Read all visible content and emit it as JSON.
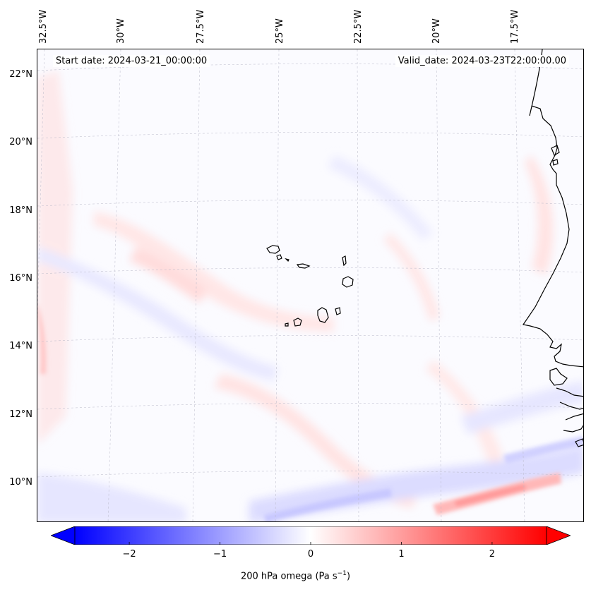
{
  "map": {
    "projection": "Lambert-like conic",
    "field": "200 hPa omega",
    "start_date": "Start date: 2024-03-21_00:00:00",
    "valid_date": "Valid_date: 2024-03-23T22:00:00.00",
    "longitude_labels": [
      "32.5°W",
      "30°W",
      "27.5°W",
      "25°W",
      "22.5°W",
      "20°W",
      "17.5°W"
    ],
    "latitude_labels": [
      "22°N",
      "20°N",
      "18°N",
      "16°N",
      "14°N",
      "12°N",
      "10°N"
    ],
    "features": [
      "Cape Verde islands",
      "West African coastline"
    ]
  },
  "colorbar": {
    "label": "200 hPa omega (Pa s",
    "label_sup": "−1",
    "label_end": ")",
    "ticks": [
      "−2",
      "−1",
      "0",
      "1",
      "2"
    ],
    "tick_values": [
      -2,
      -1,
      0,
      1,
      2
    ],
    "range": [
      -2.6,
      2.6
    ],
    "extend": "both",
    "colormap": "bwr",
    "colors": {
      "min": "#0000ff",
      "mid": "#ffffff",
      "max": "#ff0000"
    }
  }
}
